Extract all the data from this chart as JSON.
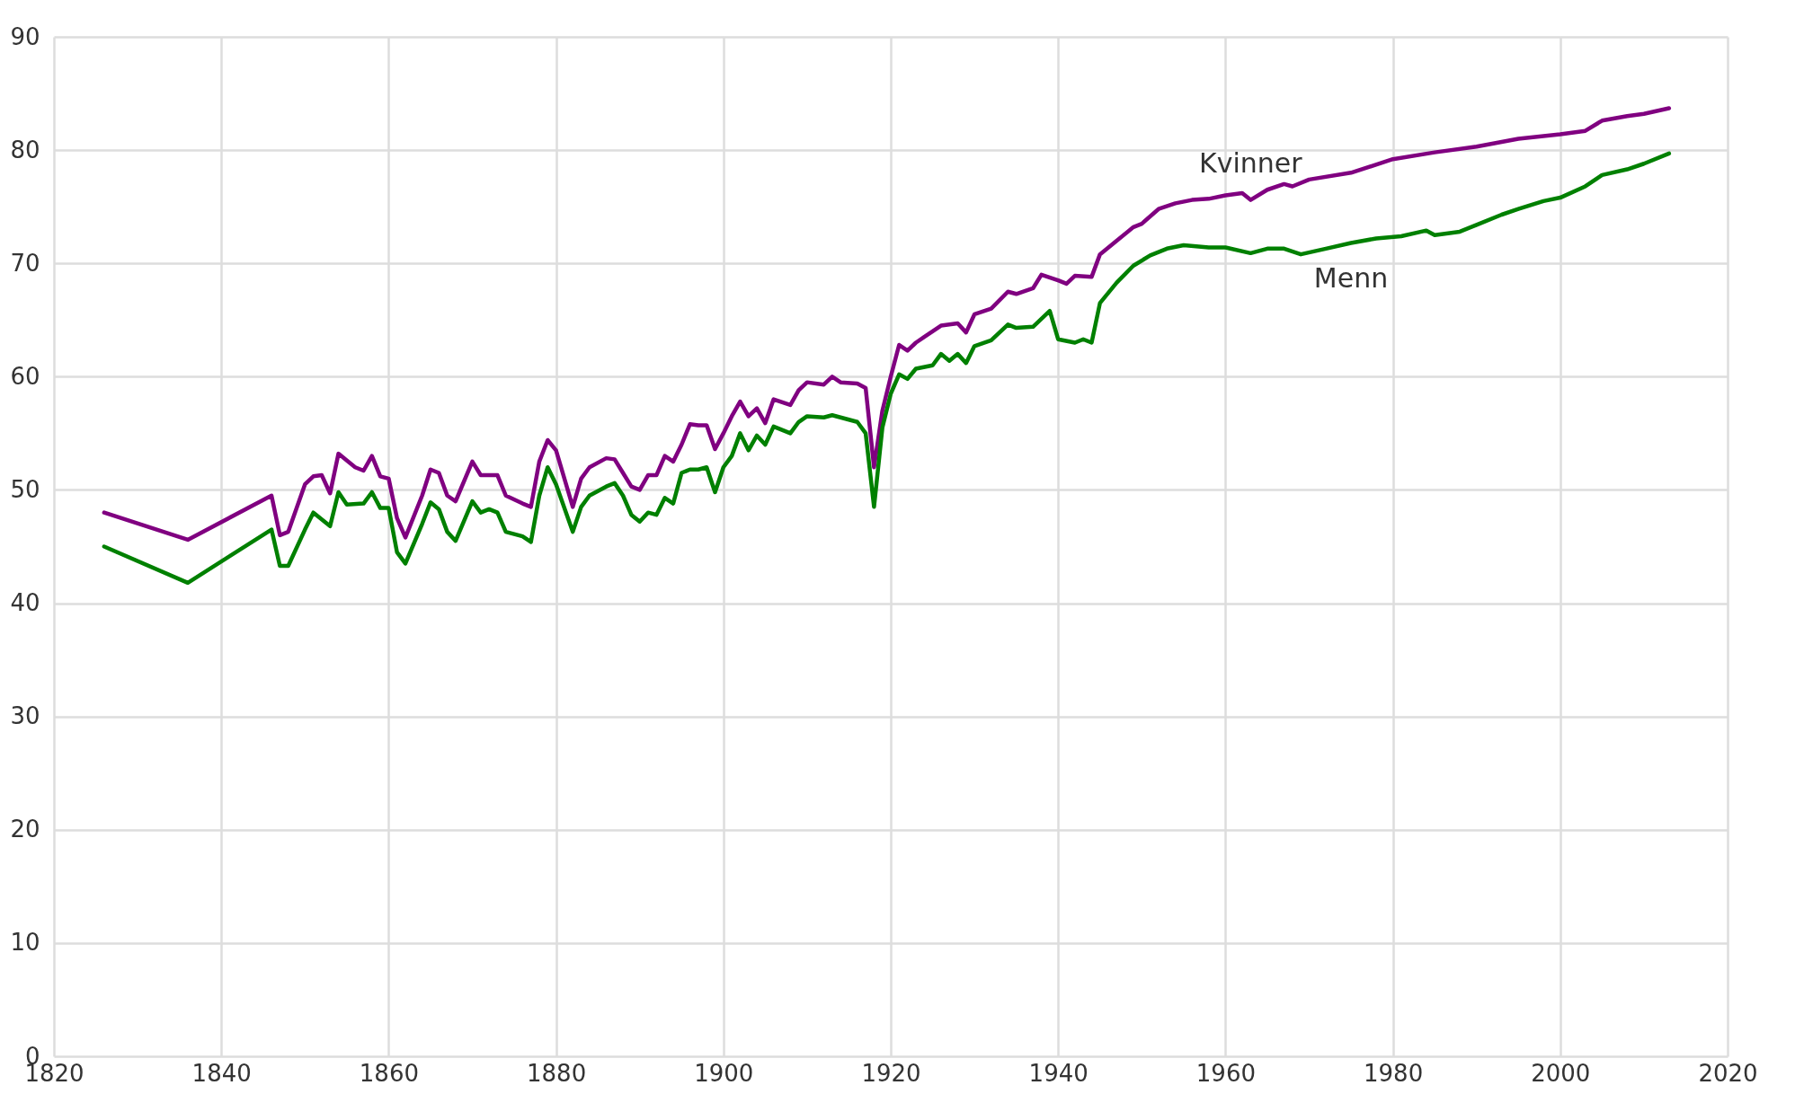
{
  "chart_data": {
    "type": "line",
    "xlim": [
      1820,
      2020
    ],
    "xticks": [
      1820,
      1840,
      1860,
      1880,
      1900,
      1920,
      1940,
      1960,
      1980,
      2000,
      2020
    ],
    "ylim": [
      0,
      90
    ],
    "yticks": [
      0,
      10,
      20,
      30,
      40,
      50,
      60,
      70,
      80,
      90
    ],
    "grid": true,
    "marker": "none",
    "line_style": "solid",
    "series": [
      {
        "name": "Kvinner",
        "color": "#800080",
        "x": [
          1826,
          1836,
          1846,
          1847,
          1848,
          1850,
          1851,
          1852,
          1853,
          1854,
          1856,
          1857,
          1858,
          1859,
          1860,
          1861,
          1862,
          1864,
          1865,
          1866,
          1867,
          1868,
          1870,
          1871,
          1873,
          1874,
          1876,
          1877,
          1878,
          1879,
          1880,
          1882,
          1883,
          1884,
          1886,
          1887,
          1888,
          1889,
          1890,
          1891,
          1892,
          1893,
          1894,
          1895,
          1896,
          1897,
          1898,
          1899,
          1900,
          1901,
          1902,
          1903,
          1904,
          1905,
          1906,
          1908,
          1909,
          1910,
          1912,
          1913,
          1914,
          1916,
          1917,
          1918,
          1919,
          1920,
          1921,
          1922,
          1923,
          1924,
          1926,
          1928,
          1929,
          1930,
          1932,
          1934,
          1935,
          1937,
          1938,
          1940,
          1941,
          1942,
          1944,
          1945,
          1947,
          1949,
          1950,
          1952,
          1954,
          1956,
          1958,
          1960,
          1962,
          1963,
          1965,
          1967,
          1968,
          1970,
          1975,
          1980,
          1985,
          1990,
          1995,
          2000,
          2003,
          2005,
          2008,
          2010,
          2013
        ],
        "values": [
          48.0,
          45.6,
          49.5,
          46.0,
          46.3,
          50.5,
          51.2,
          51.3,
          49.7,
          53.2,
          52.0,
          51.7,
          53.0,
          51.2,
          51.0,
          47.5,
          45.8,
          49.5,
          51.8,
          51.5,
          49.5,
          49.0,
          52.5,
          51.3,
          51.3,
          49.5,
          48.8,
          48.5,
          52.5,
          54.4,
          53.5,
          48.5,
          51.0,
          52.0,
          52.8,
          52.7,
          51.5,
          50.3,
          50.0,
          51.3,
          51.3,
          53.0,
          52.5,
          54.0,
          55.8,
          55.7,
          55.7,
          53.6,
          55.0,
          56.5,
          57.8,
          56.5,
          57.2,
          55.9,
          58.0,
          57.5,
          58.8,
          59.5,
          59.3,
          60.0,
          59.5,
          59.4,
          59.0,
          52.0,
          57.0,
          60.0,
          62.8,
          62.3,
          63.0,
          63.5,
          64.5,
          64.7,
          63.9,
          65.5,
          66.0,
          67.5,
          67.3,
          67.8,
          69.0,
          68.5,
          68.2,
          68.9,
          68.8,
          70.8,
          72.0,
          73.2,
          73.5,
          74.8,
          75.3,
          75.6,
          75.7,
          76.0,
          76.2,
          75.6,
          76.5,
          77.0,
          76.8,
          77.4,
          78.0,
          79.2,
          79.8,
          80.3,
          81.0,
          81.4,
          81.7,
          82.6,
          83.0,
          83.2,
          83.7
        ]
      },
      {
        "name": "Menn",
        "color": "#008000",
        "x": [
          1826,
          1836,
          1846,
          1847,
          1848,
          1850,
          1851,
          1853,
          1854,
          1855,
          1857,
          1858,
          1859,
          1860,
          1861,
          1862,
          1864,
          1865,
          1866,
          1867,
          1868,
          1870,
          1871,
          1872,
          1873,
          1874,
          1876,
          1877,
          1878,
          1879,
          1880,
          1882,
          1883,
          1884,
          1886,
          1887,
          1888,
          1889,
          1890,
          1891,
          1892,
          1893,
          1894,
          1895,
          1896,
          1897,
          1898,
          1899,
          1900,
          1901,
          1902,
          1903,
          1904,
          1905,
          1906,
          1908,
          1909,
          1910,
          1912,
          1913,
          1914,
          1916,
          1917,
          1918,
          1919,
          1920,
          1921,
          1922,
          1923,
          1925,
          1926,
          1927,
          1928,
          1929,
          1930,
          1932,
          1934,
          1935,
          1937,
          1939,
          1940,
          1942,
          1943,
          1944,
          1945,
          1947,
          1949,
          1951,
          1953,
          1955,
          1958,
          1960,
          1963,
          1965,
          1967,
          1969,
          1972,
          1975,
          1978,
          1981,
          1984,
          1985,
          1988,
          1990,
          1993,
          1995,
          1998,
          2000,
          2003,
          2005,
          2008,
          2010,
          2013
        ],
        "values": [
          45.0,
          41.8,
          46.5,
          43.3,
          43.3,
          46.5,
          48.0,
          46.8,
          49.8,
          48.7,
          48.8,
          49.8,
          48.4,
          48.4,
          44.5,
          43.5,
          47.0,
          48.9,
          48.3,
          46.3,
          45.5,
          49.0,
          48.0,
          48.3,
          48.0,
          46.3,
          45.9,
          45.4,
          49.5,
          52.0,
          50.5,
          46.3,
          48.5,
          49.5,
          50.3,
          50.6,
          49.5,
          47.8,
          47.2,
          48.0,
          47.8,
          49.3,
          48.8,
          51.5,
          51.8,
          51.8,
          52.0,
          49.8,
          52.0,
          53.0,
          55.0,
          53.5,
          54.8,
          54.0,
          55.6,
          55.0,
          56.0,
          56.5,
          56.4,
          56.6,
          56.4,
          56.0,
          55.0,
          48.5,
          55.5,
          58.5,
          60.2,
          59.8,
          60.7,
          61.0,
          62.0,
          61.4,
          62.0,
          61.2,
          62.7,
          63.2,
          64.6,
          64.3,
          64.4,
          65.8,
          63.3,
          63.0,
          63.3,
          63.0,
          66.5,
          68.3,
          69.8,
          70.7,
          71.3,
          71.6,
          71.4,
          71.4,
          70.9,
          71.3,
          71.3,
          70.8,
          71.3,
          71.8,
          72.2,
          72.4,
          72.9,
          72.5,
          72.8,
          73.4,
          74.3,
          74.8,
          75.5,
          75.8,
          76.8,
          77.8,
          78.3,
          78.8,
          79.7
        ]
      }
    ]
  }
}
